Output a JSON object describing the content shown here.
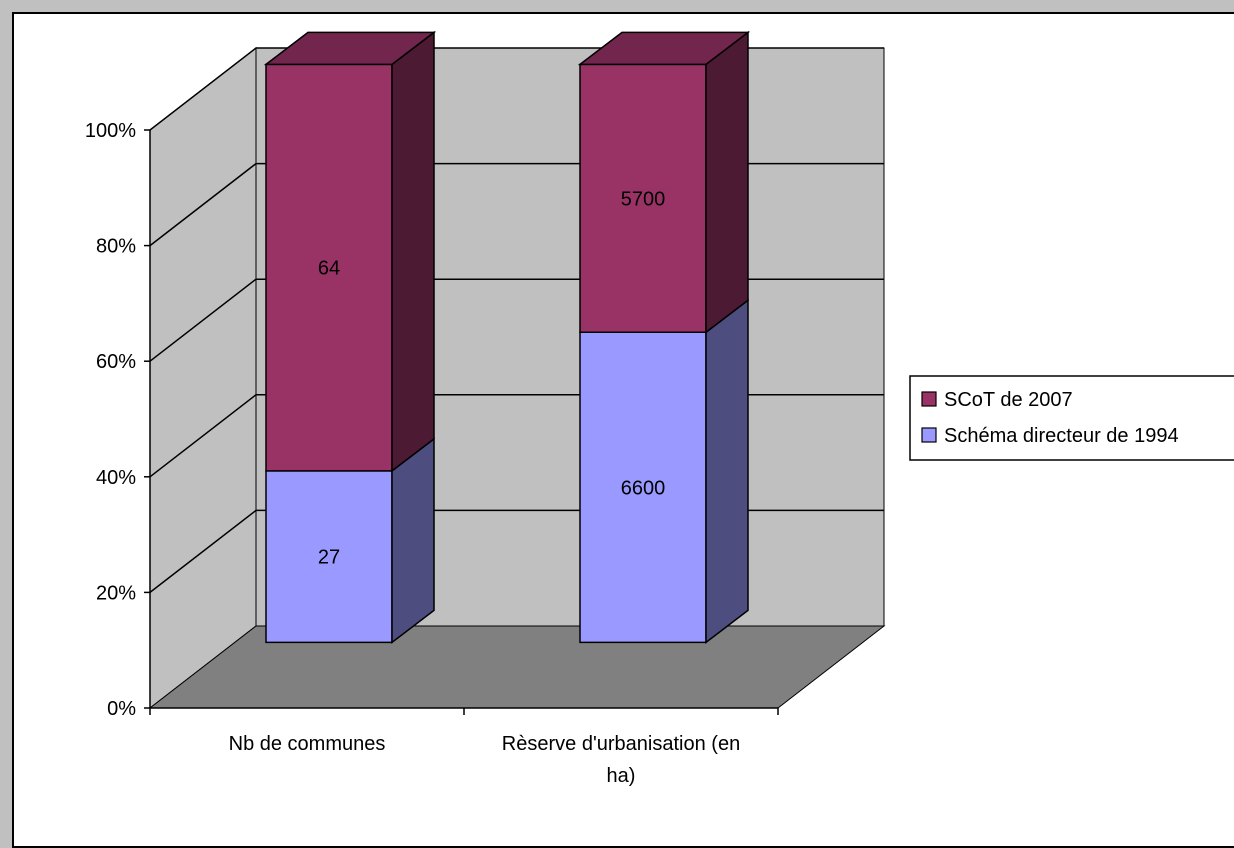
{
  "chart_data": {
    "type": "bar",
    "stacked": "percent",
    "three_d": true,
    "categories": [
      "Nb de communes",
      "Rèserve d'urbanisation (en ha)"
    ],
    "category_lines": [
      [
        "Nb de communes"
      ],
      [
        "Rèserve d'urbanisation (en",
        "ha)"
      ]
    ],
    "series": [
      {
        "name": "Schéma directeur de 1994",
        "values": [
          27,
          6600
        ],
        "labels": [
          "27",
          "6600"
        ],
        "color": "#9999ff",
        "side_color": "#4d4d80"
      },
      {
        "name": "SCoT de 2007",
        "values": [
          64,
          5700
        ],
        "labels": [
          "64",
          "5700"
        ],
        "color": "#993366",
        "side_color": "#4d1a33"
      }
    ],
    "yticks": [
      "0%",
      "20%",
      "40%",
      "60%",
      "80%",
      "100%"
    ],
    "ylim": [
      0,
      100
    ],
    "grid": true,
    "legend": "right",
    "legend_order": [
      "SCoT de 2007",
      "Schéma directeur de 1994"
    ],
    "title": "",
    "xlabel": "",
    "ylabel": ""
  }
}
